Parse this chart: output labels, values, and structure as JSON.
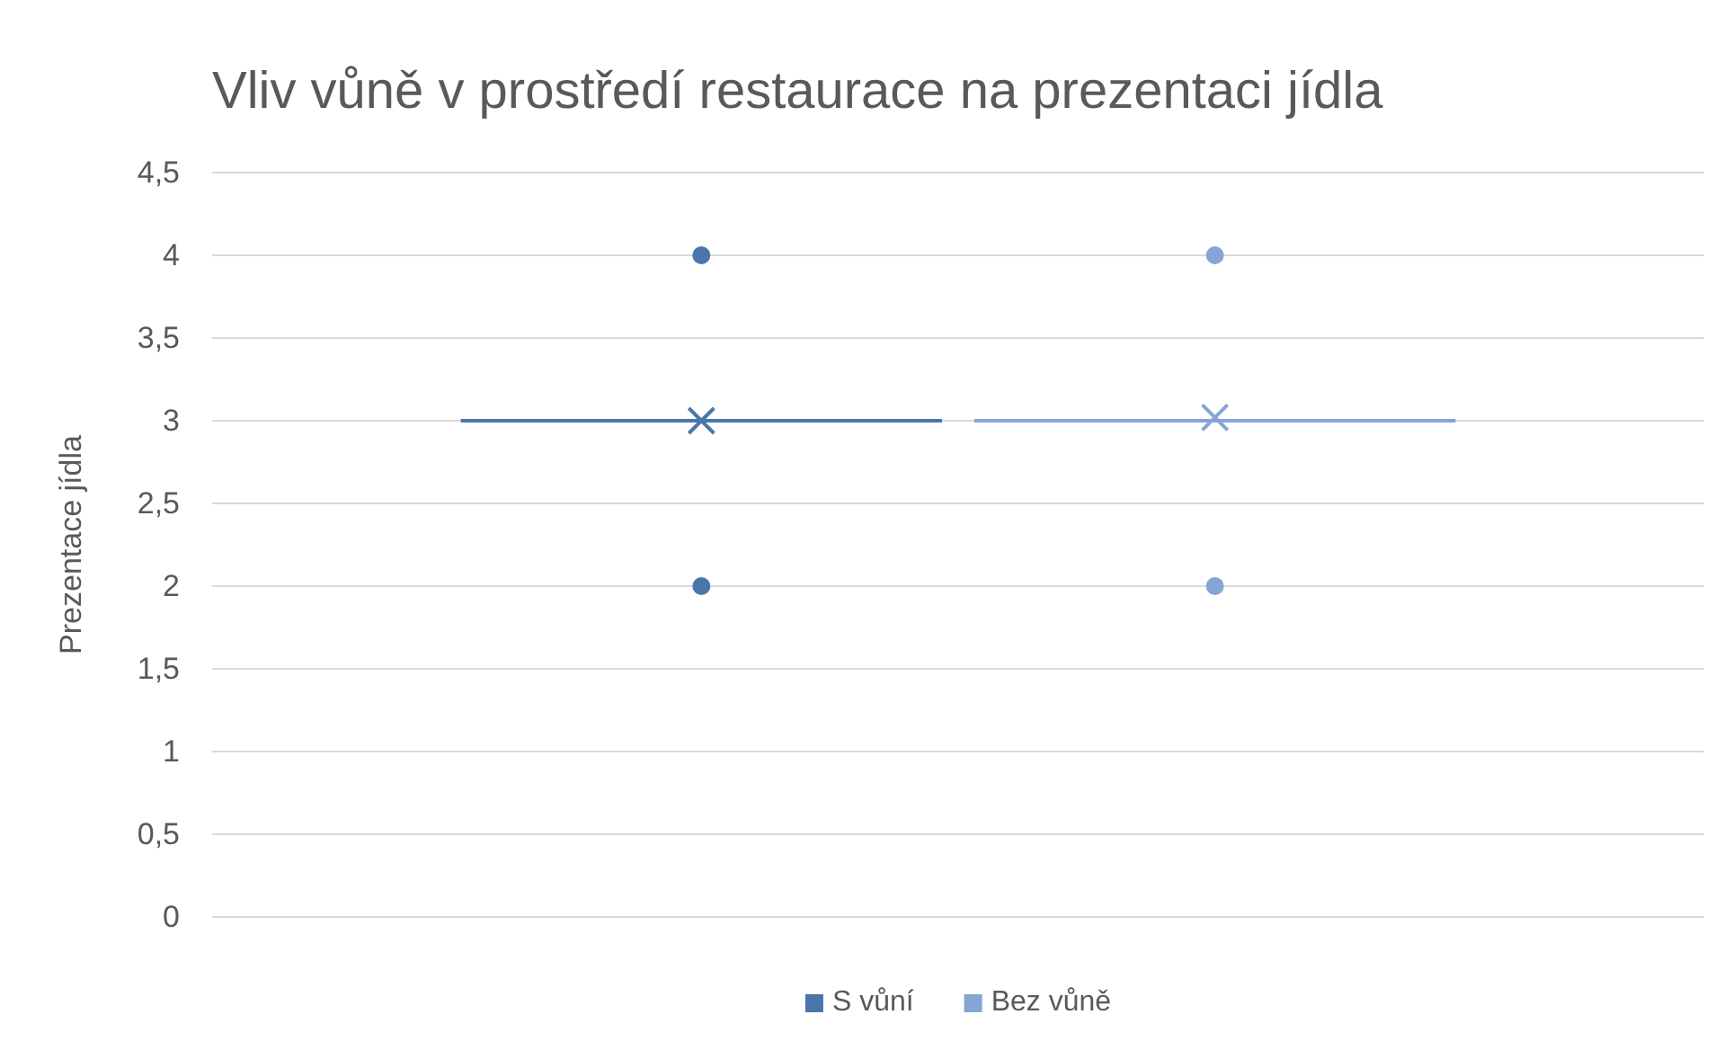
{
  "chart_data": {
    "type": "box",
    "title": "Vliv vůně v prostředí restaurace na prezentaci jídla",
    "ylabel": "Prezentace jídla",
    "categories": [
      null
    ],
    "series": [
      {
        "name": "S vůní",
        "color": "#4a76aa",
        "boxes": [
          {
            "low": 3,
            "q1": 3,
            "median": 3,
            "q3": 3,
            "high": 3,
            "mean": 3,
            "outliers": [
              2,
              4
            ]
          }
        ]
      },
      {
        "name": "Bez vůně",
        "color": "#86a5d4",
        "boxes": [
          {
            "low": 3,
            "q1": 3,
            "median": 3,
            "q3": 3,
            "high": 3,
            "mean": 3.02,
            "outliers": [
              2,
              4
            ]
          }
        ]
      }
    ],
    "ylim": [
      0,
      4.5
    ],
    "yticks": [
      {
        "value": 0,
        "label": "0"
      },
      {
        "value": 0.5,
        "label": "0,5"
      },
      {
        "value": 1,
        "label": "1"
      },
      {
        "value": 1.5,
        "label": "1,5"
      },
      {
        "value": 2,
        "label": "2"
      },
      {
        "value": 2.5,
        "label": "2,5"
      },
      {
        "value": 3,
        "label": "3"
      },
      {
        "value": 3.5,
        "label": "3,5"
      },
      {
        "value": 4,
        "label": "4"
      },
      {
        "value": 4.5,
        "label": "4,5"
      }
    ],
    "grid": "y",
    "legend": "bottom"
  }
}
